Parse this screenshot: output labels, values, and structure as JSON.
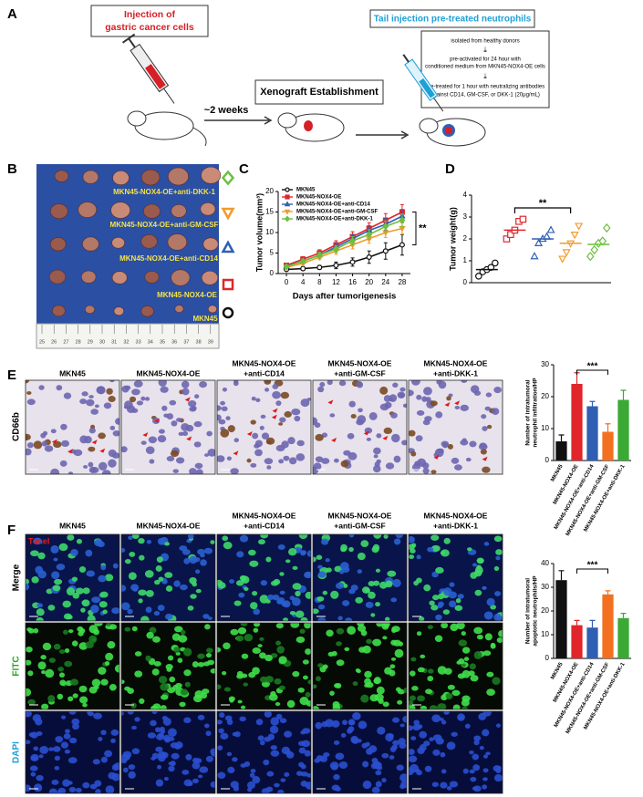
{
  "panel_labels": [
    "A",
    "B",
    "C",
    "D",
    "E",
    "F"
  ],
  "panel_a": {
    "injection": [
      "Injection of",
      "gastric cancer cells"
    ],
    "interval": "~2 weeks",
    "xenograft": "Xenograft Establishment",
    "tail_injection": "Tail injection pre-treated neutrophils",
    "steps": [
      [
        "isolated from healthy donors"
      ],
      [
        "pre-activated for 24 hour with",
        "conditioned medium from MKN45-NOX4-OE cells"
      ],
      [
        "pre-treated for 1 hour with neutralizing antibodies",
        "against CD14, GM-CSF, or DKK-1 (20μg/mL)"
      ]
    ]
  },
  "panel_b": {
    "labels": [
      "MKN45-NOX4-OE+anti-DKK-1",
      "MKN45-NOX4-OE+anti-GM-CSF",
      "MKN45-NOX4-OE+anti-CD14",
      "MKN45-NOX4-OE",
      "MKN45"
    ],
    "ruler": [
      25,
      26,
      27,
      28,
      29,
      30,
      31,
      32,
      33,
      34,
      35,
      36,
      37,
      38,
      39
    ]
  },
  "panel_e": {
    "stain": "CD66b",
    "headers": [
      [
        "MKN45"
      ],
      [
        "MKN45-NOX4-OE"
      ],
      [
        "MKN45-NOX4-OE",
        "+anti-CD14"
      ],
      [
        "MKN45-NOX4-OE",
        "+anti-GM-CSF"
      ],
      [
        "MKN45-NOX4-OE",
        "+anti-DKK-1"
      ]
    ]
  },
  "panel_f": {
    "overlay": "Tunel",
    "rows": [
      "Merge",
      "FITC",
      "DAPI"
    ],
    "headers": [
      [
        "MKN45"
      ],
      [
        "MKN45-NOX4-OE"
      ],
      [
        "MKN45-NOX4-OE",
        "+anti-CD14"
      ],
      [
        "MKN45-NOX4-OE",
        "+anti-GM-CSF"
      ],
      [
        "MKN45-NOX4-OE",
        "+anti-DKK-1"
      ]
    ]
  },
  "chart_data": [
    {
      "type": "line",
      "ylabel": "Tumor volume(mm³)",
      "xlabel": "Days after tumorigenesis",
      "annotation": "**",
      "x": [
        0,
        4,
        8,
        12,
        16,
        20,
        24,
        28
      ],
      "xlim": [
        -2,
        30
      ],
      "xticks": [
        0,
        4,
        8,
        12,
        16,
        20,
        24,
        28
      ],
      "ylim": [
        0,
        20
      ],
      "yticks": [
        0,
        5,
        10,
        15,
        20
      ],
      "series": [
        {
          "name": "MKN45",
          "color": "#111111",
          "marker": "circle",
          "values": [
            1,
            1.2,
            1.5,
            2,
            2.8,
            4,
            5.5,
            7
          ],
          "errors": [
            0.3,
            0.4,
            0.5,
            0.8,
            1,
            1.5,
            2,
            2.5
          ]
        },
        {
          "name": "MKN45-NOX4-OE",
          "color": "#e0262b",
          "marker": "square",
          "values": [
            2,
            3.5,
            5,
            7,
            9,
            11,
            13,
            15
          ],
          "errors": [
            0.4,
            0.6,
            0.8,
            1,
            1.2,
            1.4,
            1.6,
            1.8
          ]
        },
        {
          "name": "MKN45-NOX4-OE+anti-CD14",
          "color": "#2f5fb3",
          "marker": "triangle",
          "values": [
            1.8,
            3,
            4.5,
            6.5,
            8.5,
            10.5,
            12,
            14
          ],
          "errors": [
            0.4,
            0.5,
            0.7,
            0.9,
            1,
            1.2,
            1.4,
            1.6
          ]
        },
        {
          "name": "MKN45-NOX4-OE+anti-GM-CSF",
          "color": "#f39a2b",
          "marker": "triangle-down",
          "values": [
            1.5,
            2.5,
            4,
            5.5,
            7,
            8.5,
            10,
            11
          ],
          "errors": [
            0.3,
            0.5,
            0.6,
            0.8,
            1,
            1.1,
            1.2,
            1.4
          ]
        },
        {
          "name": "MKN45-NOX4-OE+anti-DKK-1",
          "color": "#6cbf3f",
          "marker": "diamond",
          "values": [
            1.7,
            3,
            4.5,
            6,
            8,
            9.5,
            11.5,
            13
          ],
          "errors": [
            0.3,
            0.5,
            0.7,
            0.8,
            1,
            1.2,
            1.3,
            1.5
          ]
        }
      ]
    },
    {
      "type": "dot",
      "ylabel": "Tumor weight(g)",
      "annotation": "**",
      "ylim": [
        0,
        4
      ],
      "yticks": [
        0,
        1,
        2,
        3,
        4
      ],
      "groups": [
        {
          "color": "#111111",
          "marker": "circle",
          "values": [
            0.3,
            0.5,
            0.6,
            0.7,
            0.9
          ],
          "mean": 0.6
        },
        {
          "color": "#e0262b",
          "marker": "square",
          "values": [
            2.0,
            2.2,
            2.4,
            2.8,
            2.9
          ],
          "mean": 2.4
        },
        {
          "color": "#2f5fb3",
          "marker": "triangle",
          "values": [
            1.2,
            1.8,
            2.0,
            2.1,
            2.4
          ],
          "mean": 2.0
        },
        {
          "color": "#f39a2b",
          "marker": "triangle-down",
          "values": [
            1.1,
            1.4,
            1.8,
            2.2,
            2.6
          ],
          "mean": 1.8
        },
        {
          "color": "#6cbf3f",
          "marker": "diamond",
          "values": [
            1.2,
            1.5,
            1.8,
            1.9,
            2.5
          ],
          "mean": 1.75
        }
      ]
    },
    {
      "type": "bar",
      "ylabel": [
        "Number of intratumoral",
        "neutrophil infiltration/HP"
      ],
      "annotation": "***",
      "categories": [
        "MKN45",
        "MKN45-NOX4-OE",
        "MKN45-NOX4-OE+anti-CD14",
        "MKN45-NOX4-OE+anti-GM-CSF",
        "MKN45-NOX4-OE+anti-DKK-1"
      ],
      "values": [
        6,
        24,
        17,
        9,
        19
      ],
      "errors": [
        2,
        3.5,
        1.5,
        2.5,
        3
      ],
      "colors": [
        "#111111",
        "#e0262b",
        "#2f5fb3",
        "#f37021",
        "#3aaa35"
      ],
      "ylim": [
        0,
        30
      ],
      "yticks": [
        0,
        10,
        20,
        30
      ]
    },
    {
      "type": "bar",
      "ylabel": [
        "Number of intratumoral",
        "apoptotic neutrophils/HP"
      ],
      "annotation": "***",
      "categories": [
        "MKN45",
        "MKN45-NOX4-OE",
        "MKN45-NOX4-OE+anti-CD14",
        "MKN45-NOX4-OE+anti-GM-CSF",
        "MKN45-NOX4-OE+anti-DKK-1"
      ],
      "values": [
        33,
        14,
        13,
        27,
        17
      ],
      "errors": [
        4,
        2,
        3,
        1.5,
        2
      ],
      "colors": [
        "#111111",
        "#e0262b",
        "#2f5fb3",
        "#f37021",
        "#3aaa35"
      ],
      "ylim": [
        0,
        40
      ],
      "yticks": [
        0,
        10,
        20,
        30,
        40
      ]
    }
  ]
}
